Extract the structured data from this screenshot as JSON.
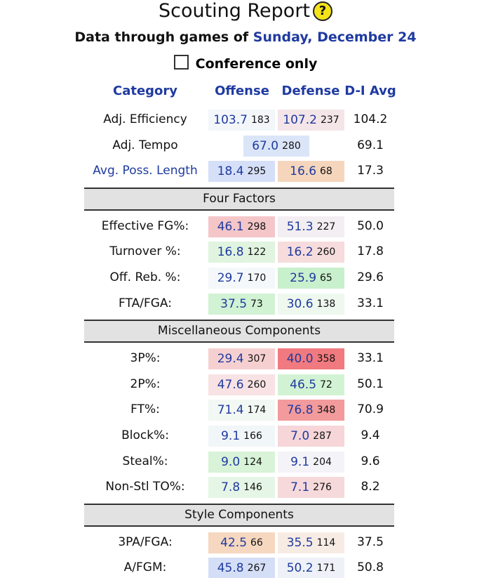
{
  "header": {
    "title": "Scouting Report",
    "help_icon": "?",
    "subtitle_prefix": "Data through games of",
    "subtitle_date": "Sunday, December 24",
    "checkbox_label": "Conference only"
  },
  "table": {
    "columns": [
      "Category",
      "Offense",
      "Defense",
      "D-I Avg"
    ],
    "sections": [
      {
        "rows": [
          {
            "label": "Adj. Efficiency",
            "offense": {
              "value": "103.7",
              "rank": "183",
              "color": "#f3f7fa"
            },
            "defense": {
              "value": "107.2",
              "rank": "237",
              "color": "#f4e5e8"
            },
            "avg": "104.2"
          },
          {
            "label": "Adj. Tempo",
            "combined": {
              "value": "67.0",
              "rank": "280",
              "color": "#dbe5f8"
            },
            "avg": "69.1"
          },
          {
            "label": "Avg. Poss. Length",
            "label_color": "#1f3aa0",
            "offense": {
              "value": "18.4",
              "rank": "295",
              "color": "#d5dff8"
            },
            "defense": {
              "value": "16.6",
              "rank": "68",
              "color": "#f5d6bd"
            },
            "avg": "17.3"
          }
        ]
      },
      {
        "title": "Four Factors",
        "rows": [
          {
            "label": "Effective FG%:",
            "offense": {
              "value": "46.1",
              "rank": "298",
              "color": "#f4c6c8"
            },
            "defense": {
              "value": "51.3",
              "rank": "227",
              "color": "#f3eef2"
            },
            "avg": "50.0"
          },
          {
            "label": "Turnover %:",
            "offense": {
              "value": "16.8",
              "rank": "122",
              "color": "#e0f4e0"
            },
            "defense": {
              "value": "16.2",
              "rank": "260",
              "color": "#f6dcdd"
            },
            "avg": "17.8"
          },
          {
            "label": "Off. Reb. %:",
            "offense": {
              "value": "29.7",
              "rank": "170",
              "color": "#f4f8fb"
            },
            "defense": {
              "value": "25.9",
              "rank": "65",
              "color": "#c9f0cc"
            },
            "avg": "29.6"
          },
          {
            "label": "FTA/FGA:",
            "offense": {
              "value": "37.5",
              "rank": "73",
              "color": "#d1f2d3"
            },
            "defense": {
              "value": "30.6",
              "rank": "138",
              "color": "#eef8ef"
            },
            "avg": "33.1"
          }
        ]
      },
      {
        "title": "Miscellaneous Components",
        "rows": [
          {
            "label": "3P%:",
            "offense": {
              "value": "29.4",
              "rank": "307",
              "color": "#f6d0d1"
            },
            "defense": {
              "value": "40.0",
              "rank": "358",
              "color": "#f07a7f"
            },
            "avg": "33.1"
          },
          {
            "label": "2P%:",
            "offense": {
              "value": "47.6",
              "rank": "260",
              "color": "#f8e2e4"
            },
            "defense": {
              "value": "46.5",
              "rank": "72",
              "color": "#d2f3d3"
            },
            "avg": "50.1"
          },
          {
            "label": "FT%:",
            "offense": {
              "value": "71.4",
              "rank": "174",
              "color": "#f2f8f3"
            },
            "defense": {
              "value": "76.8",
              "rank": "348",
              "color": "#f29a9c"
            },
            "avg": "70.9"
          },
          {
            "label": "Block%:",
            "offense": {
              "value": "9.1",
              "rank": "166",
              "color": "#f1f6f8"
            },
            "defense": {
              "value": "7.0",
              "rank": "287",
              "color": "#f6d6d8"
            },
            "avg": "9.4"
          },
          {
            "label": "Steal%:",
            "offense": {
              "value": "9.0",
              "rank": "124",
              "color": "#d8f3d8"
            },
            "defense": {
              "value": "9.1",
              "rank": "204",
              "color": "#f4f3f7"
            },
            "avg": "9.6"
          },
          {
            "label": "Non-Stl TO%:",
            "offense": {
              "value": "7.8",
              "rank": "146",
              "color": "#e6f6e6"
            },
            "defense": {
              "value": "7.1",
              "rank": "276",
              "color": "#f6d9da"
            },
            "avg": "8.2"
          }
        ]
      },
      {
        "title": "Style Components",
        "rows": [
          {
            "label": "3PA/FGA:",
            "offense": {
              "value": "42.5",
              "rank": "66",
              "color": "#f6d7bf"
            },
            "defense": {
              "value": "35.5",
              "rank": "114",
              "color": "#f7ece4"
            },
            "avg": "37.5"
          },
          {
            "label": "A/FGM:",
            "offense": {
              "value": "45.8",
              "rank": "267",
              "color": "#d4def6"
            },
            "defense": {
              "value": "50.2",
              "rank": "171",
              "color": "#eef1f8"
            },
            "avg": "50.8"
          }
        ]
      }
    ]
  }
}
